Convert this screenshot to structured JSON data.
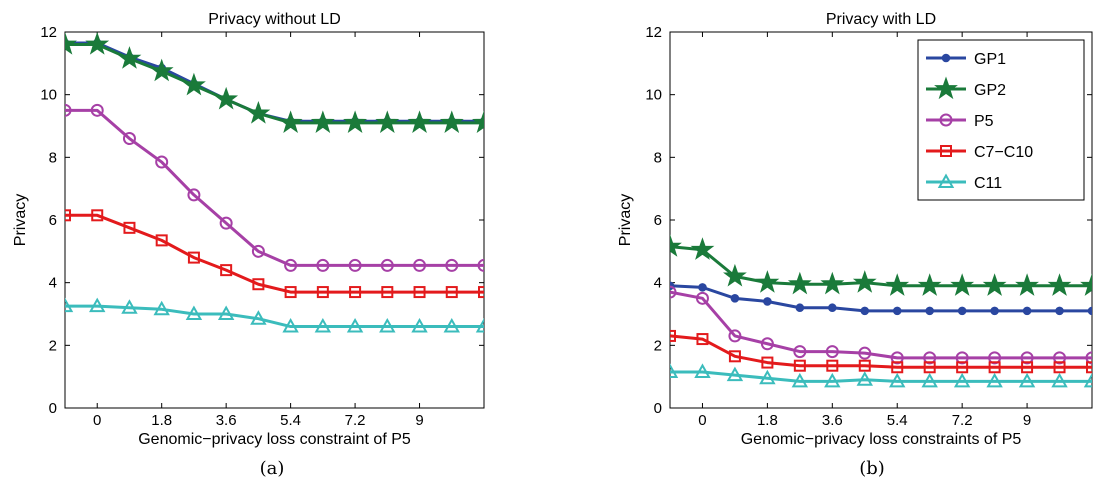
{
  "chart_data": [
    {
      "type": "line",
      "title": "Privacy without LD",
      "xlabel": "Genomic−privacy loss constraint of P5",
      "ylabel": "Privacy",
      "caption": "(a)",
      "xlim": [
        -0.9,
        10.8
      ],
      "ylim": [
        0,
        12
      ],
      "x_ticks": [
        0,
        1.8,
        3.6,
        5.4,
        7.2,
        9
      ],
      "x_tick_labels": [
        "0",
        "1.8",
        "3.6",
        "5.4",
        "7.2",
        "9"
      ],
      "y_ticks": [
        0,
        2,
        4,
        6,
        8,
        10,
        12
      ],
      "x": [
        -0.9,
        0,
        0.9,
        1.8,
        2.7,
        3.6,
        4.5,
        5.4,
        6.3,
        7.2,
        8.1,
        9.0,
        9.9,
        10.8
      ],
      "legend": null,
      "series": [
        {
          "name": "GP1",
          "color": "#2a47a0",
          "marker": "circle-filled",
          "values": [
            11.65,
            11.65,
            11.2,
            10.85,
            10.35,
            9.85,
            9.4,
            9.15,
            9.15,
            9.15,
            9.15,
            9.15,
            9.15,
            9.15
          ]
        },
        {
          "name": "GP2",
          "color": "#1a7a3a",
          "marker": "star",
          "values": [
            11.6,
            11.6,
            11.15,
            10.75,
            10.3,
            9.85,
            9.4,
            9.1,
            9.1,
            9.1,
            9.1,
            9.1,
            9.1,
            9.1
          ]
        },
        {
          "name": "P5",
          "color": "#a640a6",
          "marker": "circle-open",
          "values": [
            9.5,
            9.5,
            8.6,
            7.85,
            6.8,
            5.9,
            5.0,
            4.55,
            4.55,
            4.55,
            4.55,
            4.55,
            4.55,
            4.55
          ]
        },
        {
          "name": "C7−C10",
          "color": "#e31a1c",
          "marker": "square-open",
          "values": [
            6.15,
            6.15,
            5.75,
            5.35,
            4.8,
            4.4,
            3.95,
            3.7,
            3.7,
            3.7,
            3.7,
            3.7,
            3.7,
            3.7
          ]
        },
        {
          "name": "C11",
          "color": "#3bbcbc",
          "marker": "triangle-open",
          "values": [
            3.25,
            3.25,
            3.2,
            3.15,
            3.0,
            3.0,
            2.85,
            2.6,
            2.6,
            2.6,
            2.6,
            2.6,
            2.6,
            2.6
          ]
        }
      ]
    },
    {
      "type": "line",
      "title": "Privacy with LD",
      "xlabel": "Genomic−privacy loss constraints of P5",
      "ylabel": "Privacy",
      "caption": "(b)",
      "xlim": [
        -0.9,
        10.8
      ],
      "ylim": [
        0,
        12
      ],
      "x_ticks": [
        0,
        1.8,
        3.6,
        5.4,
        7.2,
        9
      ],
      "x_tick_labels": [
        "0",
        "1.8",
        "3.6",
        "5.4",
        "7.2",
        "9"
      ],
      "y_ticks": [
        0,
        2,
        4,
        6,
        8,
        10,
        12
      ],
      "x": [
        -0.9,
        0,
        0.9,
        1.8,
        2.7,
        3.6,
        4.5,
        5.4,
        6.3,
        7.2,
        8.1,
        9.0,
        9.9,
        10.8
      ],
      "legend": "top-right",
      "series": [
        {
          "name": "GP1",
          "color": "#2a47a0",
          "marker": "circle-filled",
          "values": [
            3.9,
            3.85,
            3.5,
            3.4,
            3.2,
            3.2,
            3.1,
            3.1,
            3.1,
            3.1,
            3.1,
            3.1,
            3.1,
            3.1
          ]
        },
        {
          "name": "GP2",
          "color": "#1a7a3a",
          "marker": "star",
          "values": [
            5.15,
            5.05,
            4.2,
            4.0,
            3.95,
            3.95,
            4.0,
            3.9,
            3.9,
            3.9,
            3.9,
            3.9,
            3.9,
            3.9
          ]
        },
        {
          "name": "P5",
          "color": "#a640a6",
          "marker": "circle-open",
          "values": [
            3.7,
            3.5,
            2.3,
            2.05,
            1.8,
            1.8,
            1.75,
            1.6,
            1.6,
            1.6,
            1.6,
            1.6,
            1.6,
            1.6
          ]
        },
        {
          "name": "C7−C10",
          "color": "#e31a1c",
          "marker": "square-open",
          "values": [
            2.3,
            2.2,
            1.65,
            1.45,
            1.35,
            1.35,
            1.35,
            1.3,
            1.3,
            1.3,
            1.3,
            1.3,
            1.3,
            1.3
          ]
        },
        {
          "name": "C11",
          "color": "#3bbcbc",
          "marker": "triangle-open",
          "values": [
            1.15,
            1.15,
            1.05,
            0.95,
            0.85,
            0.85,
            0.9,
            0.85,
            0.85,
            0.85,
            0.85,
            0.85,
            0.85,
            0.85
          ]
        }
      ]
    }
  ]
}
